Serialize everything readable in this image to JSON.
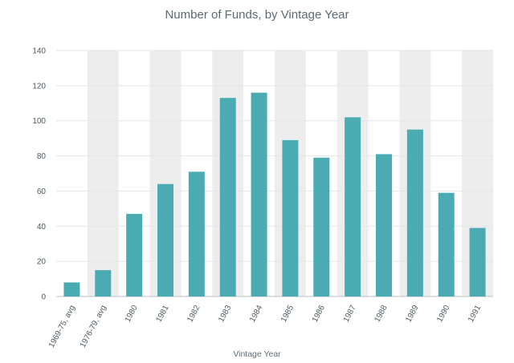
{
  "chart_data": {
    "type": "bar",
    "title": "Number of Funds, by Vintage Year",
    "xlabel": "Vintage Year",
    "ylabel": "",
    "ylim": [
      0,
      140
    ],
    "yticks": [
      0,
      20,
      40,
      60,
      80,
      100,
      120,
      140
    ],
    "categories": [
      "1969-75, avg",
      "1976-79, avg",
      "1980",
      "1981",
      "1982",
      "1983",
      "1984",
      "1985",
      "1986",
      "1987",
      "1988",
      "1989",
      "1990",
      "1991"
    ],
    "values": [
      8,
      15,
      47,
      64,
      71,
      113,
      116,
      89,
      79,
      102,
      81,
      95,
      59,
      39
    ],
    "bar_color": "#4aacb2",
    "band_color": "#ededed",
    "grid": true,
    "legend": "none"
  }
}
